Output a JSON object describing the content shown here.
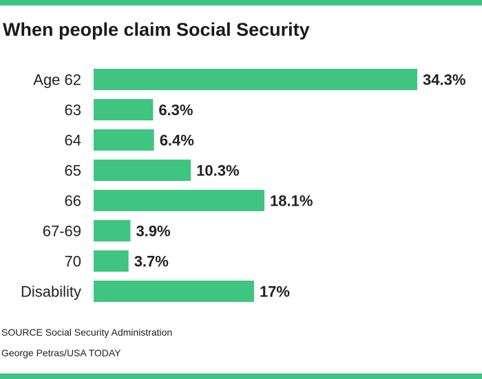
{
  "colors": {
    "accent": "#3fc481",
    "bar": "#3fc481",
    "text": "#1a1a1a"
  },
  "header": {
    "title": "When people claim Social Security"
  },
  "footer": {
    "source": "SOURCE Social Security Administration",
    "credit": "George Petras/USA TODAY"
  },
  "chart_data": {
    "type": "bar",
    "orientation": "horizontal",
    "title": "When people claim Social Security",
    "categories": [
      "Age 62",
      "63",
      "64",
      "65",
      "66",
      "67-69",
      "70",
      "Disability"
    ],
    "values": [
      34.3,
      6.3,
      6.4,
      10.3,
      18.1,
      3.9,
      3.7,
      17
    ],
    "value_labels": [
      "34.3%",
      "6.3%",
      "6.4%",
      "10.3%",
      "18.1%",
      "3.9%",
      "3.7%",
      "17%"
    ],
    "xlim": [
      0,
      34.3
    ],
    "grid": false,
    "legend": "none"
  }
}
